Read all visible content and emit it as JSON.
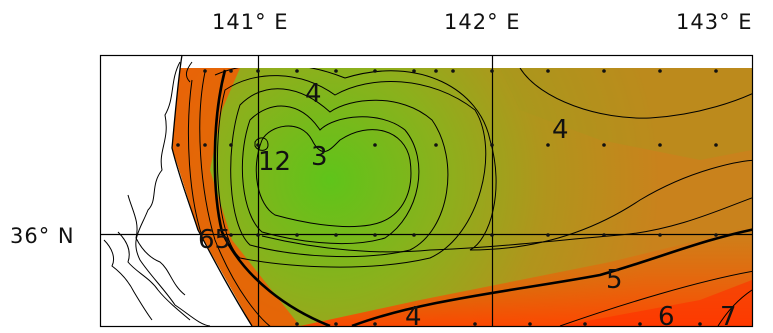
{
  "axes": {
    "longitude_labels": [
      "141° E",
      "142° E",
      "143° E"
    ],
    "latitude_labels": [
      "36° N"
    ]
  },
  "contour_labels": {
    "c4_top": "4",
    "c12": "12",
    "c3": "3",
    "c4_right": "4",
    "c65": "65",
    "c5": "5",
    "c4_bottom": "4",
    "c6": "6",
    "c7": "7"
  },
  "colors": {
    "low": "#5fc41a",
    "mid": "#a4a21c",
    "high": "#ff4a00",
    "land": "#ffffff",
    "frame": "#000000"
  }
}
